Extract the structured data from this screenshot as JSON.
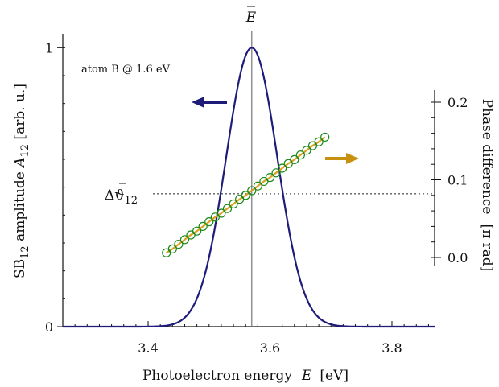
{
  "chart_data": {
    "type": "line",
    "annotation": "atom B @ 1.6 eV",
    "marker_label": "E",
    "reference_label_main": "Δϑ",
    "reference_label_sub": "12",
    "xaxis": {
      "label_main": "Photoelectron energy",
      "label_var": "E",
      "label_unit": "[eV]",
      "range": [
        3.26,
        3.87
      ],
      "ticks": [
        3.4,
        3.6,
        3.8
      ],
      "tick_labels": [
        "3.4",
        "3.6",
        "3.8"
      ]
    },
    "yaxis_left": {
      "label_prefix": "SB",
      "label_sub": "12",
      "label_mid": " amplitude  ",
      "label_var": "A",
      "label_var_sub": "12",
      "label_unit": "  [arb. u.]",
      "range": [
        0,
        1.05
      ],
      "ticks": [
        0,
        1
      ],
      "tick_labels": [
        "0",
        "1"
      ]
    },
    "yaxis_right": {
      "label_main": "Phase difference",
      "label_unit": "[π rad]",
      "range": [
        -0.02,
        0.2
      ],
      "ticks": [
        0.0,
        0.1,
        0.2
      ],
      "tick_labels": [
        "0.0",
        "0.1",
        "0.2"
      ]
    },
    "series": [
      {
        "kind": "gaussian",
        "axis": "left",
        "center": 3.57,
        "sigma": 0.042,
        "amplitude": 1.0,
        "x_range": [
          3.26,
          3.87
        ],
        "color": "#1e1b7a"
      },
      {
        "kind": "linear",
        "axis": "right",
        "x": [
          3.43,
          3.44,
          3.45,
          3.46,
          3.47,
          3.48,
          3.49,
          3.5,
          3.51,
          3.52,
          3.53,
          3.54,
          3.55,
          3.56,
          3.57,
          3.58,
          3.59,
          3.6,
          3.61,
          3.62,
          3.63,
          3.64,
          3.65,
          3.66,
          3.67,
          3.68,
          3.69
        ],
        "y": [
          0.006,
          0.011,
          0.017,
          0.023,
          0.029,
          0.034,
          0.04,
          0.046,
          0.052,
          0.057,
          0.063,
          0.069,
          0.075,
          0.08,
          0.086,
          0.092,
          0.098,
          0.103,
          0.109,
          0.115,
          0.121,
          0.126,
          0.132,
          0.138,
          0.144,
          0.149,
          0.155
        ],
        "line_color": "#d9a21f",
        "marker_color": "#1a8a1a"
      }
    ],
    "vertical_line_x": 3.57,
    "reference_value": 0.082,
    "arrow_left_color": "#1e1b7a",
    "arrow_right_color": "#c8900f"
  }
}
